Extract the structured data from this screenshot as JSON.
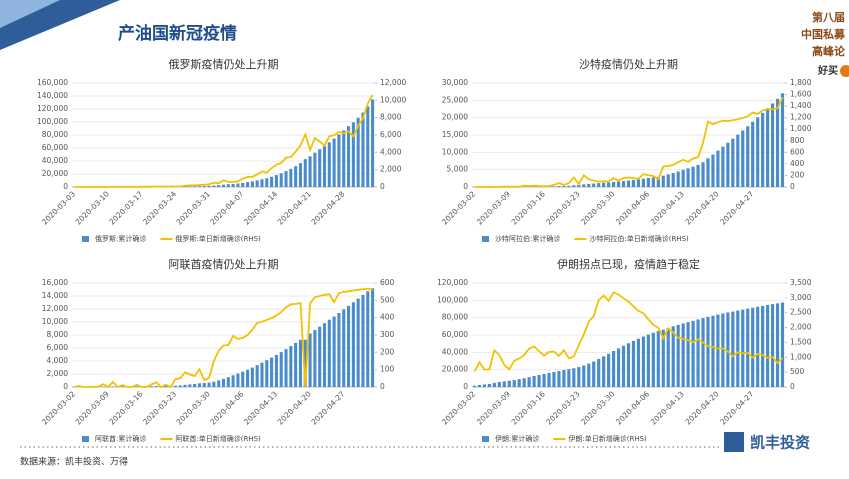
{
  "header": {
    "title": "产油国新冠疫情",
    "side_lines": [
      "第八届",
      "中国私募",
      "高峰论"
    ],
    "side_tag": "好买"
  },
  "footer": {
    "source": "数据来源：凯丰投资、万得",
    "logo": "凯丰投资"
  },
  "chart_data": [
    {
      "type": "bar_line",
      "title": "俄罗斯疫情仍处上升期",
      "categories": [
        "2020-03-03",
        null,
        null,
        null,
        null,
        null,
        null,
        "2020-03-10",
        null,
        null,
        null,
        null,
        null,
        null,
        "2020-03-17",
        null,
        null,
        null,
        null,
        null,
        null,
        "2020-03-24",
        null,
        null,
        null,
        null,
        null,
        null,
        "2020-03-31",
        null,
        null,
        null,
        null,
        null,
        null,
        "2020-04-07",
        null,
        null,
        null,
        null,
        null,
        null,
        "2020-04-14",
        null,
        null,
        null,
        null,
        null,
        null,
        "2020-04-21",
        null,
        null,
        null,
        null,
        null,
        null,
        "2020-04-28",
        null,
        null,
        null,
        null,
        null,
        null
      ],
      "series": [
        {
          "name": "俄罗斯:累计确诊",
          "color": "#4a8ccb",
          "values": [
            3,
            3,
            4,
            10,
            10,
            10,
            17,
            20,
            20,
            28,
            34,
            45,
            59,
            63,
            93,
            114,
            147,
            199,
            253,
            306,
            367,
            438,
            495,
            658,
            840,
            1036,
            1264,
            1534,
            1836,
            2337,
            2777,
            3548,
            4149,
            4731,
            5389,
            6343,
            7497,
            8672,
            10131,
            11917,
            13584,
            15770,
            18328,
            21102,
            24490,
            27938,
            32008,
            36793,
            42853,
            47121,
            52763,
            57999,
            62773,
            68622,
            74588,
            80949,
            87147,
            93558,
            99399,
            106498,
            114431,
            124054,
            134687
          ]
        },
        {
          "name": "俄罗斯:单日新增确诊(RHS)",
          "color": "#f2c200",
          "axis": "y2",
          "values": [
            0,
            0,
            1,
            6,
            0,
            0,
            7,
            3,
            0,
            8,
            6,
            11,
            14,
            4,
            30,
            21,
            33,
            52,
            54,
            53,
            61,
            71,
            57,
            163,
            182,
            196,
            228,
            270,
            302,
            501,
            440,
            771,
            601,
            582,
            658,
            954,
            1154,
            1175,
            1459,
            1786,
            1667,
            2186,
            2558,
            2774,
            3388,
            3448,
            4070,
            4785,
            6060,
            4268,
            5642,
            5236,
            4774,
            5849,
            5966,
            6361,
            6198,
            6411,
            5841,
            7099,
            7933,
            9623,
            10633
          ]
        }
      ],
      "ylim": [
        0,
        160000
      ],
      "yticks": [
        0,
        {
          "value": 20000,
          "label": "20,000"
        },
        {
          "value": 40000,
          "label": "40,000"
        },
        {
          "value": 60000,
          "label": "60,000"
        },
        {
          "value": 80000,
          "label": "80,000"
        },
        {
          "value": 100000,
          "label": "100,000"
        },
        {
          "value": 120000,
          "label": "120,000"
        },
        {
          "value": 140000,
          "label": "140,000"
        },
        {
          "value": 160000,
          "label": "160,000"
        }
      ],
      "y2lim": [
        0,
        12000
      ],
      "y2ticks": [
        0,
        {
          "value": 2000,
          "label": "2,000"
        },
        {
          "value": 4000,
          "label": "4,000"
        },
        {
          "value": 6000,
          "label": "6,000"
        },
        {
          "value": 8000,
          "label": "8,000"
        },
        {
          "value": 10000,
          "label": "10,000"
        },
        {
          "value": 12000,
          "label": "12,000"
        }
      ],
      "grid": true
    },
    {
      "type": "bar_line",
      "title": "沙特疫情仍处上升期",
      "categories": [
        "2020-03-02",
        null,
        null,
        null,
        null,
        null,
        null,
        "2020-03-09",
        null,
        null,
        null,
        null,
        null,
        null,
        "2020-03-16",
        null,
        null,
        null,
        null,
        null,
        null,
        "2020-03-23",
        null,
        null,
        null,
        null,
        null,
        null,
        "2020-03-30",
        null,
        null,
        null,
        null,
        null,
        null,
        "2020-04-06",
        null,
        null,
        null,
        null,
        null,
        null,
        "2020-04-13",
        null,
        null,
        null,
        null,
        null,
        null,
        "2020-04-20",
        null,
        null,
        null,
        null,
        null,
        null,
        "2020-04-27",
        null,
        null,
        null,
        null,
        null,
        null
      ],
      "series": [
        {
          "name": "沙特阿拉伯:累计确诊",
          "color": "#4a8ccb",
          "values": [
            0,
            1,
            1,
            5,
            5,
            5,
            11,
            15,
            20,
            21,
            45,
            62,
            86,
            103,
            118,
            133,
            171,
            238,
            274,
            344,
            511,
            562,
            767,
            900,
            1012,
            1104,
            1203,
            1299,
            1453,
            1563,
            1720,
            1885,
            2039,
            2179,
            2402,
            2605,
            2795,
            2932,
            3287,
            3651,
            4033,
            4462,
            4934,
            5369,
            5862,
            6380,
            7142,
            8274,
            9362,
            10484,
            11631,
            12772,
            13930,
            15102,
            16299,
            17522,
            18811,
            20077,
            21402,
            22753,
            24097,
            25459,
            27011
          ]
        },
        {
          "name": "沙特阿拉伯:单日新增确诊(RHS)",
          "color": "#f2c200",
          "axis": "y2",
          "values": [
            0,
            1,
            0,
            4,
            0,
            0,
            6,
            4,
            5,
            1,
            24,
            17,
            24,
            17,
            15,
            15,
            38,
            67,
            36,
            70,
            167,
            51,
            205,
            133,
            112,
            92,
            99,
            96,
            154,
            110,
            157,
            165,
            154,
            140,
            223,
            203,
            190,
            137,
            355,
            364,
            382,
            429,
            472,
            435,
            493,
            518,
            762,
            1132,
            1088,
            1122,
            1147,
            1141,
            1158,
            1172,
            1197,
            1223,
            1289,
            1266,
            1325,
            1351,
            1344,
            1362,
            1552
          ]
        }
      ],
      "ylim": [
        0,
        30000
      ],
      "yticks": [
        0,
        {
          "value": 5000,
          "label": "5,000"
        },
        {
          "value": 10000,
          "label": "10,000"
        },
        {
          "value": 15000,
          "label": "15,000"
        },
        {
          "value": 20000,
          "label": "20,000"
        },
        {
          "value": 25000,
          "label": "25,000"
        },
        {
          "value": 30000,
          "label": "30,000"
        }
      ],
      "y2lim": [
        0,
        1800
      ],
      "y2ticks": [
        0,
        200,
        400,
        600,
        800,
        {
          "value": 1000,
          "label": "1,000"
        },
        {
          "value": 1200,
          "label": "1,200"
        },
        {
          "value": 1400,
          "label": "1,400"
        },
        {
          "value": 1600,
          "label": "1,600"
        },
        {
          "value": 1800,
          "label": "1,800"
        }
      ],
      "grid": true
    },
    {
      "type": "bar_line",
      "title": "阿联酋疫情仍处上升期",
      "categories": [
        "2020-03-02",
        null,
        null,
        null,
        null,
        null,
        null,
        "2020-03-09",
        null,
        null,
        null,
        null,
        null,
        null,
        "2020-03-16",
        null,
        null,
        null,
        null,
        null,
        null,
        "2020-03-23",
        null,
        null,
        null,
        null,
        null,
        null,
        "2020-03-30",
        null,
        null,
        null,
        null,
        null,
        null,
        "2020-04-06",
        null,
        null,
        null,
        null,
        null,
        null,
        "2020-04-13",
        null,
        null,
        null,
        null,
        null,
        null,
        "2020-04-20",
        null,
        null,
        null,
        null,
        null,
        null,
        "2020-04-27",
        null,
        null,
        null,
        null,
        null,
        null
      ],
      "series": [
        {
          "name": "阿联酋:累计确诊",
          "color": "#4a8ccb",
          "values": [
            21,
            27,
            27,
            27,
            28,
            29,
            45,
            45,
            74,
            74,
            85,
            85,
            85,
            98,
            98,
            98,
            113,
            140,
            140,
            153,
            153,
            198,
            248,
            333,
            405,
            468,
            570,
            611,
            664,
            814,
            1024,
            1264,
            1505,
            1799,
            2076,
            2359,
            2659,
            2990,
            3360,
            3736,
            4123,
            4521,
            4933,
            5365,
            5825,
            6302,
            6781,
            7265,
            7265,
            8238,
            8756,
            9281,
            9813,
            10349,
            10839,
            11380,
            11929,
            12481,
            13038,
            13599,
            14163,
            14730,
            15192
          ]
        },
        {
          "name": "阿联酋:单日新增确诊(RHS)",
          "color": "#f2c200",
          "axis": "y2",
          "values": [
            0,
            6,
            0,
            0,
            1,
            1,
            16,
            0,
            29,
            0,
            11,
            0,
            0,
            13,
            0,
            0,
            15,
            27,
            0,
            13,
            0,
            45,
            50,
            85,
            72,
            63,
            102,
            41,
            53,
            150,
            210,
            240,
            241,
            294,
            277,
            283,
            300,
            331,
            370,
            376,
            387,
            398,
            412,
            432,
            460,
            477,
            479,
            484,
            0,
            483,
            518,
            525,
            532,
            536,
            490,
            541,
            549,
            552,
            557,
            561,
            564,
            567,
            560
          ]
        }
      ],
      "ylim": [
        0,
        16000
      ],
      "yticks": [
        0,
        {
          "value": 2000,
          "label": "2,000"
        },
        {
          "value": 4000,
          "label": "4,000"
        },
        {
          "value": 6000,
          "label": "6,000"
        },
        {
          "value": 8000,
          "label": "8,000"
        },
        {
          "value": 10000,
          "label": "10,000"
        },
        {
          "value": 12000,
          "label": "12,000"
        },
        {
          "value": 14000,
          "label": "14,000"
        },
        {
          "value": 16000,
          "label": "16,000"
        }
      ],
      "y2lim": [
        0,
        600
      ],
      "y2ticks": [
        0,
        100,
        200,
        300,
        400,
        500,
        600
      ],
      "grid": true
    },
    {
      "type": "bar_line",
      "title": "伊朗拐点已现，疫情趋于稳定",
      "categories": [
        "2020-03-02",
        null,
        null,
        null,
        null,
        null,
        null,
        "2020-03-09",
        null,
        null,
        null,
        null,
        null,
        null,
        "2020-03-16",
        null,
        null,
        null,
        null,
        null,
        null,
        "2020-03-23",
        null,
        null,
        null,
        null,
        null,
        null,
        "2020-03-30",
        null,
        null,
        null,
        null,
        null,
        null,
        "2020-04-06",
        null,
        null,
        null,
        null,
        null,
        null,
        "2020-04-13",
        null,
        null,
        null,
        null,
        null,
        null,
        "2020-04-20",
        null,
        null,
        null,
        null,
        null,
        null,
        "2020-04-27",
        null,
        null,
        null,
        null,
        null,
        null
      ],
      "series": [
        {
          "name": "伊朗:累计确诊",
          "color": "#4a8ccb",
          "values": [
            1501,
            2336,
            2922,
            3513,
            4747,
            5823,
            6566,
            7161,
            8042,
            9000,
            10075,
            11364,
            12729,
            13938,
            14991,
            16169,
            17361,
            18407,
            19644,
            20610,
            21638,
            23049,
            24811,
            27017,
            29406,
            32332,
            35408,
            38309,
            41495,
            44605,
            47593,
            50468,
            53183,
            55743,
            58226,
            60500,
            62589,
            64586,
            66220,
            68192,
            70029,
            71686,
            73303,
            74877,
            76389,
            77995,
            79494,
            80868,
            82211,
            83505,
            84802,
            85996,
            87026,
            88194,
            89328,
            90481,
            91472,
            92584,
            93657,
            94640,
            95646,
            96448,
            97424
          ]
        },
        {
          "name": "伊朗:单日新增确诊(RHS)",
          "color": "#f2c200",
          "axis": "y2",
          "values": [
            523,
            835,
            586,
            591,
            1234,
            1076,
            743,
            595,
            881,
            958,
            1075,
            1289,
            1365,
            1209,
            1053,
            1178,
            1192,
            1046,
            1237,
            966,
            1028,
            1411,
            1762,
            2206,
            2389,
            2926,
            3076,
            2901,
            3186,
            3110,
            2988,
            2875,
            2715,
            2560,
            2483,
            2274,
            2089,
            1997,
            1634,
            1972,
            1837,
            1657,
            1617,
            1574,
            1512,
            1606,
            1499,
            1374,
            1343,
            1294,
            1297,
            1194,
            1030,
            1168,
            1134,
            1153,
            991,
            1112,
            1073,
            983,
            1006,
            802,
            976
          ]
        }
      ],
      "ylim": [
        0,
        120000
      ],
      "yticks": [
        0,
        {
          "value": 20000,
          "label": "20,000"
        },
        {
          "value": 40000,
          "label": "40,000"
        },
        {
          "value": 60000,
          "label": "60,000"
        },
        {
          "value": 80000,
          "label": "80,000"
        },
        {
          "value": 100000,
          "label": "100,000"
        },
        {
          "value": 120000,
          "label": "120,000"
        }
      ],
      "y2lim": [
        0,
        3500
      ],
      "y2ticks": [
        0,
        500,
        {
          "value": 1000,
          "label": "1,000"
        },
        {
          "value": 1500,
          "label": "1,500"
        },
        {
          "value": 2000,
          "label": "2,000"
        },
        {
          "value": 2500,
          "label": "2,500"
        },
        {
          "value": 3000,
          "label": "3,000"
        },
        {
          "value": 3500,
          "label": "3,500"
        }
      ],
      "grid": true
    }
  ]
}
